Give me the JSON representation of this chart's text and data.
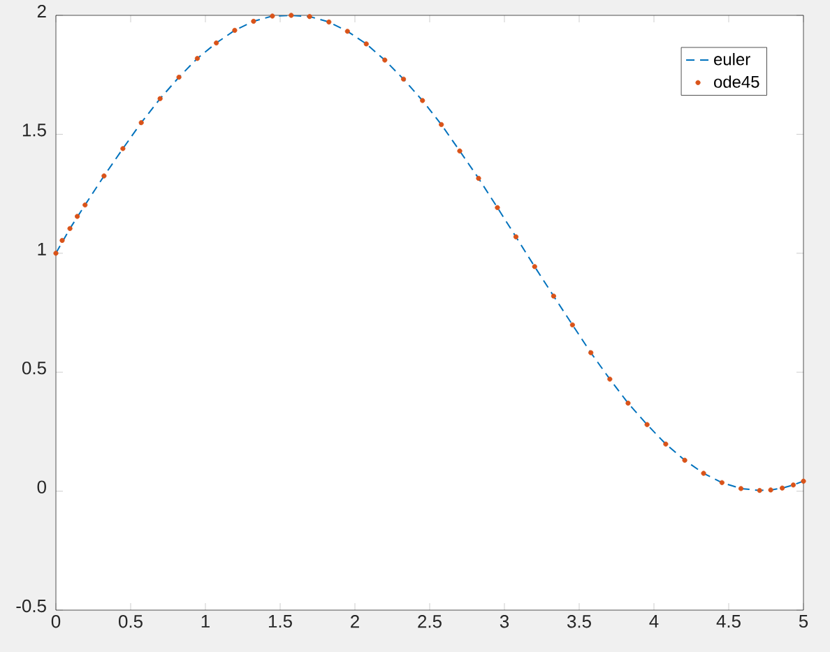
{
  "chart_data": {
    "type": "line",
    "xlim": [
      0,
      5
    ],
    "ylim": [
      -0.5,
      2
    ],
    "xticks": [
      0,
      0.5,
      1,
      1.5,
      2,
      2.5,
      3,
      3.5,
      4,
      4.5,
      5
    ],
    "yticks": [
      -0.5,
      0,
      0.5,
      1,
      1.5,
      2
    ],
    "legend": "top right",
    "grid": false,
    "series": [
      {
        "name": "euler",
        "line_style": "dashed",
        "marker": "none",
        "color": "#0072bd",
        "x": [
          0,
          0.094,
          0.195,
          0.322,
          0.448,
          0.571,
          0.697,
          0.823,
          0.946,
          1.073,
          1.196,
          1.322,
          1.448,
          1.574,
          1.697,
          1.826,
          1.95,
          2.076,
          2.2,
          2.325,
          2.452,
          2.578,
          2.701,
          2.827,
          2.953,
          3.077,
          3.202,
          3.329,
          3.455,
          3.578,
          3.705,
          3.827,
          3.954,
          4.079,
          4.206,
          4.332,
          4.455,
          4.582,
          4.707,
          4.781,
          4.858,
          4.932,
          5
        ],
        "values": [
          1.0,
          1.104,
          1.203,
          1.325,
          1.44,
          1.549,
          1.65,
          1.74,
          1.819,
          1.884,
          1.937,
          1.975,
          1.997,
          2.0,
          1.995,
          1.972,
          1.933,
          1.88,
          1.812,
          1.732,
          1.642,
          1.541,
          1.43,
          1.315,
          1.192,
          1.069,
          0.944,
          0.82,
          0.699,
          0.582,
          0.471,
          0.37,
          0.28,
          0.198,
          0.13,
          0.075,
          0.036,
          0.011,
          0.003,
          0.005,
          0.013,
          0.026,
          0.042
        ]
      },
      {
        "name": "ode45",
        "type": "scatter",
        "marker": "circle",
        "color": "#d95319",
        "x": [
          0,
          0.042,
          0.094,
          0.143,
          0.195,
          0.322,
          0.448,
          0.571,
          0.697,
          0.823,
          0.946,
          1.073,
          1.196,
          1.322,
          1.448,
          1.574,
          1.697,
          1.826,
          1.95,
          2.076,
          2.2,
          2.325,
          2.452,
          2.578,
          2.701,
          2.827,
          2.953,
          3.077,
          3.202,
          3.329,
          3.455,
          3.578,
          3.705,
          3.827,
          3.954,
          4.079,
          4.206,
          4.332,
          4.455,
          4.582,
          4.707,
          4.781,
          4.858,
          4.932,
          5
        ],
        "values": [
          1.0,
          1.054,
          1.104,
          1.155,
          1.203,
          1.325,
          1.44,
          1.549,
          1.65,
          1.74,
          1.819,
          1.884,
          1.937,
          1.975,
          1.997,
          2.0,
          1.995,
          1.972,
          1.933,
          1.88,
          1.812,
          1.732,
          1.642,
          1.541,
          1.43,
          1.315,
          1.192,
          1.069,
          0.944,
          0.82,
          0.699,
          0.582,
          0.471,
          0.37,
          0.28,
          0.198,
          0.13,
          0.075,
          0.036,
          0.011,
          0.003,
          0.005,
          0.013,
          0.026,
          0.042
        ]
      }
    ]
  }
}
